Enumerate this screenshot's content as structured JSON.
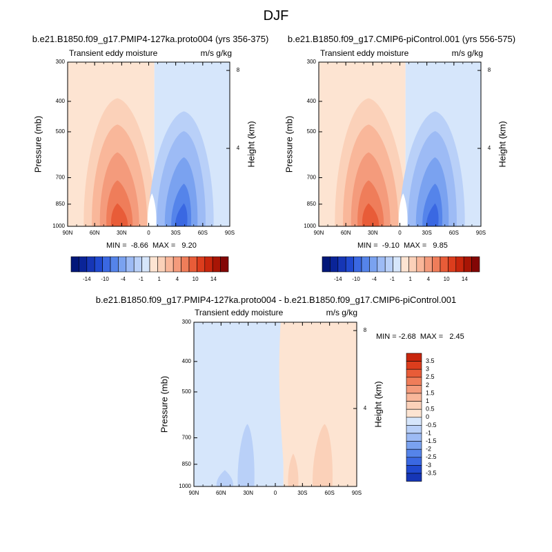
{
  "figure": {
    "title": "DJF",
    "panels": [
      {
        "title": "b.e21.B1850.f09_g17.PMIP4-127ka.proto004 (yrs 356-375)",
        "left_label": "Transient eddy moisture",
        "right_label": "m/s g/kg",
        "minmax": "MIN =  -8.66  MAX =   9.20"
      },
      {
        "title": "b.e21.B1850.f09_g17.CMIP6-piControl.001 (yrs 556-575)",
        "left_label": "Transient eddy moisture",
        "right_label": "m/s g/kg",
        "minmax": "MIN =  -9.10  MAX =   9.85"
      },
      {
        "title": "b.e21.B1850.f09_g17.PMIP4-127ka.proto004 - b.e21.B1850.f09_g17.CMIP6-piControl.001",
        "left_label": "Transient eddy moisture",
        "right_label": "m/s g/kg",
        "minmax": "MIN = -2.68  MAX =   2.45"
      }
    ]
  },
  "chart_data": [
    {
      "type": "heatmap",
      "title": "b.e21.B1850.f09_g17.PMIP4-127ka.proto004 (yrs 356-375)",
      "xlabel": "",
      "ylabel": "Pressure (mb)",
      "y2label": "Height (km)",
      "x_ticks": [
        "90N",
        "60N",
        "30N",
        "0",
        "30S",
        "60S",
        "90S"
      ],
      "y_ticks": [
        "300",
        "400",
        "500",
        "700",
        "850",
        "1000"
      ],
      "y2_ticks": [
        "8",
        "4"
      ],
      "ylim": [
        1000,
        300
      ],
      "min": -8.66,
      "max": 9.2,
      "colorbar_labels": [
        "-14",
        "-10",
        "-4",
        "-1",
        "1",
        "4",
        "10",
        "14"
      ]
    },
    {
      "type": "heatmap",
      "title": "b.e21.B1850.f09_g17.CMIP6-piControl.001 (yrs 556-575)",
      "xlabel": "",
      "ylabel": "Pressure (mb)",
      "y2label": "Height (km)",
      "x_ticks": [
        "90N",
        "60N",
        "30N",
        "0",
        "30S",
        "60S",
        "90S"
      ],
      "y_ticks": [
        "300",
        "400",
        "500",
        "700",
        "850",
        "1000"
      ],
      "y2_ticks": [
        "8",
        "4"
      ],
      "ylim": [
        1000,
        300
      ],
      "min": -9.1,
      "max": 9.85,
      "colorbar_labels": [
        "-14",
        "-10",
        "-4",
        "-1",
        "1",
        "4",
        "10",
        "14"
      ]
    },
    {
      "type": "heatmap",
      "title": "b.e21.B1850.f09_g17.PMIP4-127ka.proto004 - b.e21.B1850.f09_g17.CMIP6-piControl.001",
      "xlabel": "",
      "ylabel": "Pressure (mb)",
      "y2label": "Height (km)",
      "x_ticks": [
        "90N",
        "60N",
        "30N",
        "0",
        "30S",
        "60S",
        "90S"
      ],
      "y_ticks": [
        "300",
        "400",
        "500",
        "700",
        "850",
        "1000"
      ],
      "y2_ticks": [
        "8",
        "4"
      ],
      "ylim": [
        1000,
        300
      ],
      "min": -2.68,
      "max": 2.45,
      "colorbar_labels": [
        "3.5",
        "3",
        "2.5",
        "2",
        "1.5",
        "1",
        "0.5",
        "0",
        "-0.5",
        "-1",
        "-1.5",
        "-2",
        "-2.5",
        "-3",
        "-3.5"
      ]
    }
  ],
  "colors": {
    "neg": [
      "#d6e6fb",
      "#b9d0f8",
      "#9dbbf5",
      "#7aa2f0",
      "#5584ea",
      "#3a68e2",
      "#2049cf",
      "#1636b6",
      "#0a2498",
      "#021779"
    ],
    "pos": [
      "#fde4d2",
      "#fbd1b9",
      "#f9b79a",
      "#f49b7c",
      "#ef7d5a",
      "#e85c38",
      "#dc3d1d",
      "#c8260d",
      "#a81505",
      "#830605"
    ],
    "divider_white": "#ffffff"
  }
}
